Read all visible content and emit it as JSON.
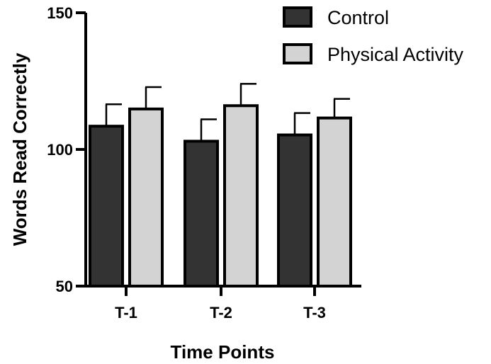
{
  "chart_data": {
    "type": "bar",
    "categories": [
      "T-1",
      "T-2",
      "T-3"
    ],
    "series": [
      {
        "name": "Control",
        "values": [
          108.5,
          103,
          105.3
        ],
        "error": [
          8,
          8,
          8
        ],
        "color": "#333333"
      },
      {
        "name": "Physical Activity",
        "values": [
          114.8,
          116,
          111.5
        ],
        "error": [
          8,
          8,
          7
        ],
        "color": "#d3d3d3"
      }
    ],
    "xlabel": "Time Points",
    "ylabel": "Words Read Correctly",
    "ylim": [
      50,
      150
    ],
    "yticks": [
      "50",
      "100",
      "150"
    ],
    "grid": false,
    "legend": "top-right"
  }
}
